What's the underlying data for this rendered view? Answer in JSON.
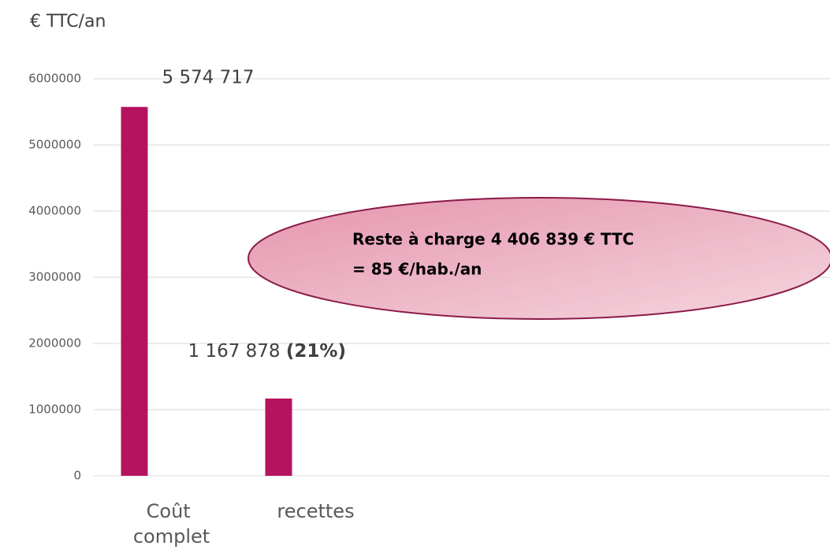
{
  "chart_data": {
    "type": "bar",
    "ylabel": "€ TTC/an",
    "categories": [
      "Coût complet",
      "recettes"
    ],
    "values": [
      5574717,
      1167878
    ],
    "value_labels": [
      "5 574 717",
      "1 167 878"
    ],
    "share_label": "(21%)",
    "color": "#b5135f",
    "ylim": [
      0,
      6000000
    ],
    "yticks": [
      0,
      1000000,
      2000000,
      3000000,
      4000000,
      5000000,
      6000000
    ],
    "grid": true,
    "annotation": [
      "Reste à charge 4 406 839 € TTC",
      "= 85 €/hab./an"
    ]
  }
}
